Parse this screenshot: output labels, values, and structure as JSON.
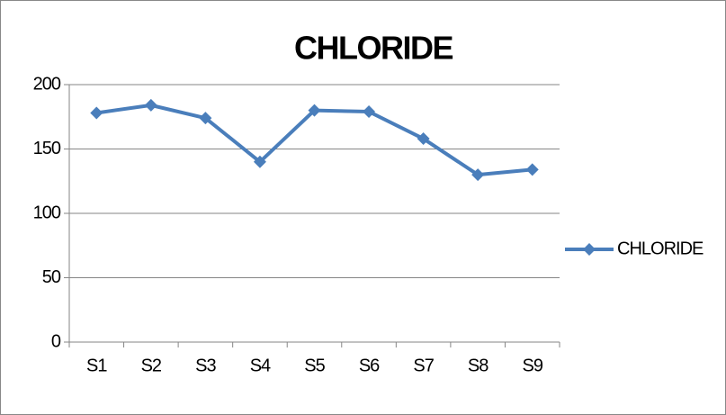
{
  "chart_data": {
    "type": "line",
    "title": "CHLORIDE",
    "categories": [
      "S1",
      "S2",
      "S3",
      "S4",
      "S5",
      "S6",
      "S7",
      "S8",
      "S9"
    ],
    "series": [
      {
        "name": "CHLORIDE",
        "color": "#4a7ebb",
        "values": [
          178,
          184,
          174,
          140,
          180,
          179,
          158,
          130,
          134
        ]
      }
    ],
    "ylim": [
      0,
      200
    ],
    "yticks": [
      0,
      50,
      100,
      150,
      200
    ],
    "grid": true,
    "legend": "right"
  }
}
